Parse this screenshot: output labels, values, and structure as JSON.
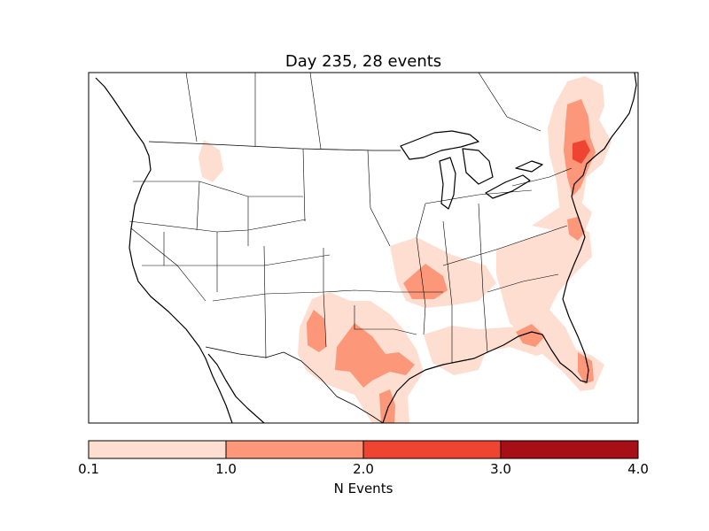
{
  "map": {
    "title": "Day 235, 28 events",
    "projection": "Lambert conformal, continental United States with parts of Canada and Mexico",
    "background": "#ffffff",
    "outline_color": "#000000",
    "density_regions": [
      {
        "area": "Montana",
        "level": "0.1-1.0"
      },
      {
        "area": "Texas / New Mexico / Oklahoma",
        "level": "1.0-2.0"
      },
      {
        "area": "Arkansas / Tennessee",
        "level": "1.0-2.0"
      },
      {
        "area": "Gulf Coast",
        "level": "0.1-1.0"
      },
      {
        "area": "Florida Panhandle",
        "level": "1.0-2.0"
      },
      {
        "area": "South Florida",
        "level": "1.0-2.0"
      },
      {
        "area": "Atlantic Coast / Virginia",
        "level": "1.0-2.0"
      },
      {
        "area": "New England",
        "level": "2.0-3.0"
      }
    ]
  },
  "colorbar": {
    "label": "N Events",
    "tick_labels": [
      "0.1",
      "1.0",
      "2.0",
      "3.0",
      "4.0"
    ],
    "colors": [
      "#fdded1",
      "#fc9779",
      "#ef4432",
      "#a50f15"
    ]
  }
}
